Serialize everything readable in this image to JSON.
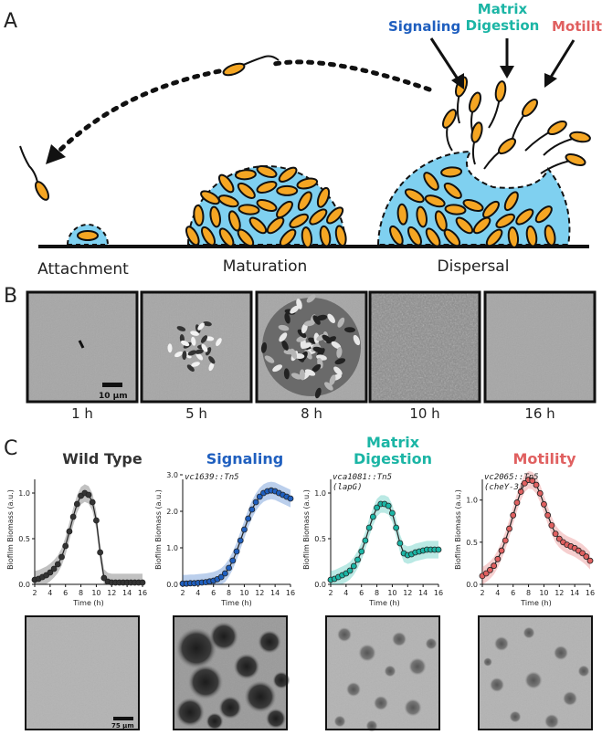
{
  "panel_labels": {
    "a": "A",
    "b": "B",
    "c": "C"
  },
  "panel_a": {
    "stages": [
      "Attachment",
      "Maturation",
      "Dispersal"
    ],
    "dispersal_factors": [
      {
        "label": "Signaling",
        "color": "#1f5fbf"
      },
      {
        "label": "Matrix\nDigestion",
        "color": "#1bb5a5"
      },
      {
        "label": "Motilit",
        "color": "#e06060"
      }
    ],
    "colors": {
      "matrix": "#7fd0f0",
      "cell": "#f5a623",
      "outline": "#111111"
    }
  },
  "panel_b": {
    "timepoints": [
      "1 h",
      "5 h",
      "8 h",
      "10 h",
      "16 h"
    ],
    "scalebar": "10 µm"
  },
  "panel_c": {
    "titles": [
      {
        "text": "Wild Type",
        "color": "#333333"
      },
      {
        "text": "Signaling",
        "color": "#1f5fbf"
      },
      {
        "text": "Matrix\nDigestion",
        "color": "#1bb5a5"
      },
      {
        "text": "Motility",
        "color": "#e06060"
      }
    ],
    "mutant_labels": [
      "",
      "vc1639::Tn5",
      "vca1081::Tn5\n(lapG)",
      "vc2065::Tn5\n(cheY-3)"
    ],
    "scalebar": "75 µm"
  },
  "chart_data": [
    {
      "type": "line",
      "title": "Wild Type",
      "xlabel": "Time (h)",
      "ylabel": "Biofilm Biomass (a.u.)",
      "xlim": [
        2,
        16
      ],
      "ylim": [
        0,
        1.2
      ],
      "xticks": [
        2,
        4,
        6,
        8,
        10,
        12,
        14,
        16
      ],
      "yticks": [
        0.0,
        0.5,
        1.0
      ],
      "color": "#333333",
      "x": [
        2,
        2.5,
        3,
        3.5,
        4,
        4.5,
        5,
        5.5,
        6,
        6.5,
        7,
        7.5,
        8,
        8.5,
        9,
        9.5,
        10,
        10.5,
        11,
        11.5,
        12,
        12.5,
        13,
        13.5,
        14,
        14.5,
        15,
        15.5,
        16
      ],
      "y": [
        0.05,
        0.06,
        0.08,
        0.1,
        0.13,
        0.17,
        0.22,
        0.3,
        0.42,
        0.58,
        0.74,
        0.88,
        0.97,
        1.0,
        0.98,
        0.9,
        0.7,
        0.35,
        0.07,
        0.03,
        0.02,
        0.02,
        0.02,
        0.02,
        0.02,
        0.02,
        0.02,
        0.02,
        0.02
      ]
    },
    {
      "type": "line",
      "title": "Signaling",
      "annotation": "vc1639::Tn5",
      "xlabel": "Time (h)",
      "ylabel": "Biofilm Biomass (a.u.)",
      "xlim": [
        2,
        16
      ],
      "ylim": [
        0,
        3.0
      ],
      "xticks": [
        2,
        4,
        6,
        8,
        10,
        12,
        14,
        16
      ],
      "yticks": [
        0.0,
        1.0,
        2.0,
        3.0
      ],
      "color": "#1f5fbf",
      "x": [
        2,
        2.5,
        3,
        3.5,
        4,
        4.5,
        5,
        5.5,
        6,
        6.5,
        7,
        7.5,
        8,
        8.5,
        9,
        9.5,
        10,
        10.5,
        11,
        11.5,
        12,
        12.5,
        13,
        13.5,
        14,
        14.5,
        15,
        15.5,
        16
      ],
      "y": [
        0.02,
        0.02,
        0.03,
        0.03,
        0.04,
        0.05,
        0.06,
        0.08,
        0.1,
        0.14,
        0.2,
        0.3,
        0.45,
        0.65,
        0.9,
        1.2,
        1.5,
        1.8,
        2.05,
        2.25,
        2.4,
        2.5,
        2.55,
        2.57,
        2.55,
        2.5,
        2.45,
        2.4,
        2.35
      ]
    },
    {
      "type": "line",
      "title": "Matrix Digestion",
      "annotation": "vca1081::Tn5 (lapG)",
      "xlabel": "Time (h)",
      "ylabel": "Biofilm Biomass (a.u.)",
      "xlim": [
        2,
        16
      ],
      "ylim": [
        0,
        1.2
      ],
      "xticks": [
        2,
        4,
        6,
        8,
        10,
        12,
        14,
        16
      ],
      "yticks": [
        0.0,
        0.5,
        1.0
      ],
      "color": "#1bb5a5",
      "x": [
        2,
        2.5,
        3,
        3.5,
        4,
        4.5,
        5,
        5.5,
        6,
        6.5,
        7,
        7.5,
        8,
        8.5,
        9,
        9.5,
        10,
        10.5,
        11,
        11.5,
        12,
        12.5,
        13,
        13.5,
        14,
        14.5,
        15,
        15.5,
        16
      ],
      "y": [
        0.05,
        0.06,
        0.08,
        0.1,
        0.12,
        0.15,
        0.2,
        0.27,
        0.36,
        0.48,
        0.62,
        0.74,
        0.84,
        0.88,
        0.88,
        0.86,
        0.78,
        0.62,
        0.45,
        0.34,
        0.32,
        0.33,
        0.35,
        0.36,
        0.37,
        0.38,
        0.38,
        0.38,
        0.38
      ]
    },
    {
      "type": "line",
      "title": "Motility",
      "annotation": "vc2065::Tn5 (cheY-3)",
      "xlabel": "Time (h)",
      "ylabel": "Biofilm Biomass (a.u.)",
      "xlim": [
        2,
        16
      ],
      "ylim": [
        0,
        1.3
      ],
      "xticks": [
        2,
        4,
        6,
        8,
        10,
        12,
        14,
        16
      ],
      "yticks": [
        0.0,
        0.5,
        1.0
      ],
      "color": "#e06060",
      "x": [
        2,
        2.5,
        3,
        3.5,
        4,
        4.5,
        5,
        5.5,
        6,
        6.5,
        7,
        7.5,
        8,
        8.5,
        9,
        9.5,
        10,
        10.5,
        11,
        11.5,
        12,
        12.5,
        13,
        13.5,
        14,
        14.5,
        15,
        15.5,
        16
      ],
      "y": [
        0.1,
        0.13,
        0.17,
        0.22,
        0.3,
        0.4,
        0.52,
        0.66,
        0.82,
        0.97,
        1.1,
        1.2,
        1.24,
        1.23,
        1.18,
        1.08,
        0.95,
        0.82,
        0.7,
        0.6,
        0.54,
        0.5,
        0.47,
        0.45,
        0.43,
        0.4,
        0.37,
        0.33,
        0.28
      ]
    }
  ]
}
